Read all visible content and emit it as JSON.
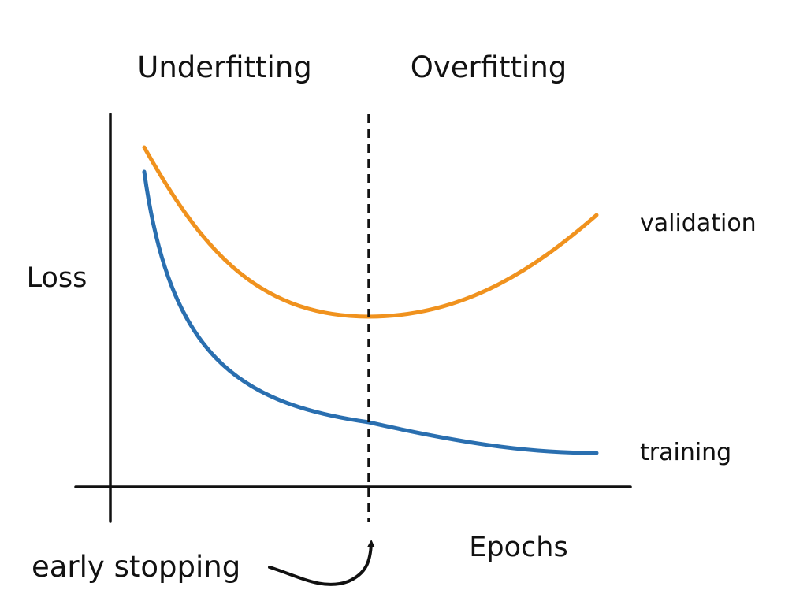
{
  "chart_data": {
    "type": "line",
    "xlabel": "Epochs",
    "ylabel": "Loss",
    "regions": [
      {
        "label": "Underfitting"
      },
      {
        "label": "Overfitting"
      }
    ],
    "annotation": {
      "label": "early stopping"
    },
    "series": [
      {
        "name": "validation",
        "color": "#f0921e"
      },
      {
        "name": "training",
        "color": "#2a6fb0"
      }
    ]
  }
}
